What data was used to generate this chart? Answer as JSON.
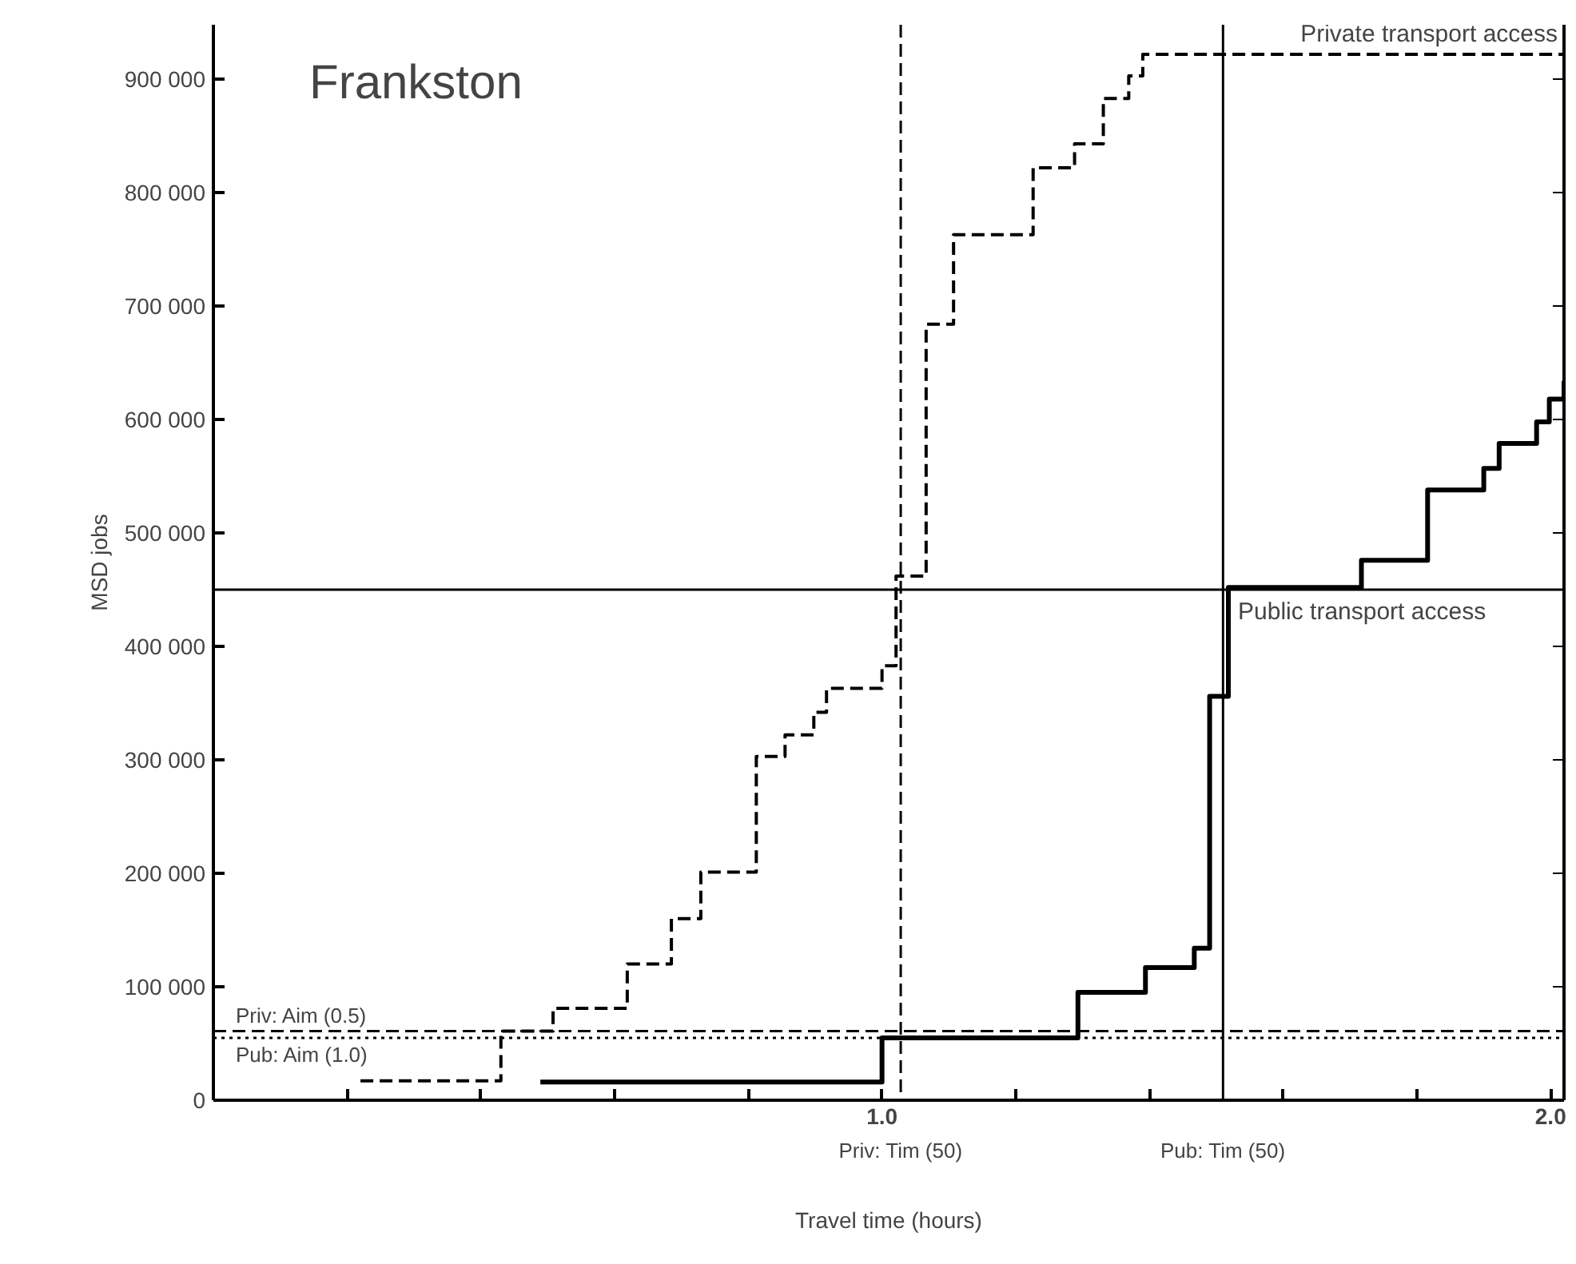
{
  "chart_data": {
    "type": "step",
    "title": "Frankston",
    "xlabel": "Travel time (hours)",
    "ylabel": "MSD jobs",
    "xlim": [
      0,
      2.02
    ],
    "ylim": [
      0,
      948000
    ],
    "xticks": [
      {
        "value": 0.2,
        "label": null
      },
      {
        "value": 0.4,
        "label": null
      },
      {
        "value": 0.6,
        "label": null
      },
      {
        "value": 0.8,
        "label": null
      },
      {
        "value": 1.0,
        "label": "1.0"
      },
      {
        "value": 1.2,
        "label": null
      },
      {
        "value": 1.4,
        "label": null
      },
      {
        "value": 1.6,
        "label": null
      },
      {
        "value": 1.8,
        "label": null
      },
      {
        "value": 2.0,
        "label": "2.0"
      }
    ],
    "yticks": [
      {
        "value": 0,
        "label": "0"
      },
      {
        "value": 100000,
        "label": "100 000"
      },
      {
        "value": 200000,
        "label": "200 000"
      },
      {
        "value": 300000,
        "label": "300 000"
      },
      {
        "value": 400000,
        "label": "400 000"
      },
      {
        "value": 500000,
        "label": "500 000"
      },
      {
        "value": 600000,
        "label": "600 000"
      },
      {
        "value": 700000,
        "label": "700 000"
      },
      {
        "value": 800000,
        "label": "800 000"
      },
      {
        "value": 900000,
        "label": "900 000"
      }
    ],
    "grid": false,
    "legend": false,
    "series": [
      {
        "name": "Private transport access",
        "color": "#000000",
        "line_style": "dashed",
        "x": [
          0.22,
          0.43,
          0.508,
          0.619,
          0.685,
          0.729,
          0.812,
          0.855,
          0.898,
          0.917,
          1.0,
          1.021,
          1.066,
          1.107,
          1.226,
          1.288,
          1.331,
          1.369,
          1.39,
          2.02
        ],
        "values": [
          17000,
          61000,
          81000,
          120000,
          160000,
          201000,
          303000,
          322000,
          342000,
          363000,
          383000,
          462000,
          684000,
          763000,
          822000,
          843000,
          883000,
          903000,
          922000,
          922000
        ]
      },
      {
        "name": "Public transport access",
        "color": "#000000",
        "line_style": "solid",
        "x": [
          0.489,
          1.0,
          1.293,
          1.394,
          1.467,
          1.49,
          1.518,
          1.717,
          1.816,
          1.9,
          1.923,
          1.979,
          1.998,
          2.02
        ],
        "values": [
          16000,
          55000,
          95000,
          117000,
          134000,
          356000,
          452000,
          476000,
          538000,
          557000,
          579000,
          598000,
          618000,
          634000
        ]
      }
    ],
    "ref_lines": [
      {
        "axis": "y",
        "value": 450000,
        "line_style": "solid"
      },
      {
        "axis": "x",
        "value": 1.028,
        "label": "Priv: Tim (50)",
        "line_style": "dashed"
      },
      {
        "axis": "x",
        "value": 1.51,
        "label": "Pub: Tim (50)",
        "line_style": "solid"
      },
      {
        "axis": "y",
        "value": 61000,
        "label": "Priv: Aim (0.5)",
        "line_style": "dashed"
      },
      {
        "axis": "y",
        "value": 55000,
        "label": "Pub: Aim (1.0)",
        "line_style": "dotted"
      }
    ]
  }
}
